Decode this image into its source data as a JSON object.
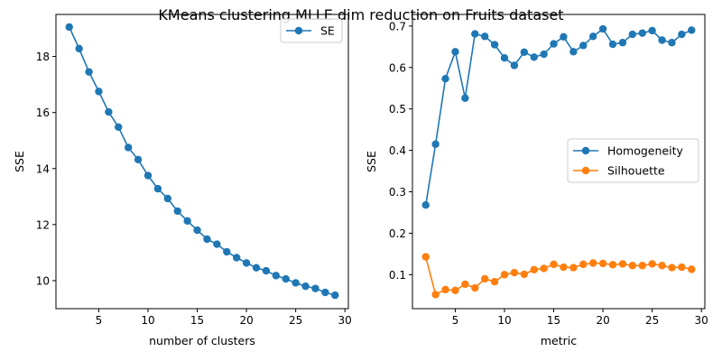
{
  "figure": {
    "title": "KMeans clustering MLLE dim reduction on Fruits dataset"
  },
  "chart_data": [
    {
      "type": "line",
      "xlabel": "number of clusters",
      "ylabel": "SSE",
      "xlim": [
        0.65,
        30.35
      ],
      "ylim": [
        9.0,
        19.5
      ],
      "xticks": [
        5,
        10,
        15,
        20,
        25,
        30
      ],
      "yticks": [
        10,
        12,
        14,
        16,
        18
      ],
      "ytick_labels": [
        "10",
        "12",
        "14",
        "16",
        "18"
      ],
      "legend_position": "upper right",
      "x": [
        2,
        3,
        4,
        5,
        6,
        7,
        8,
        9,
        10,
        11,
        12,
        13,
        14,
        15,
        16,
        17,
        18,
        19,
        20,
        21,
        22,
        23,
        24,
        25,
        26,
        27,
        28,
        29
      ],
      "series": [
        {
          "name": "SE",
          "color": "#1f77b4",
          "values": [
            19.05,
            18.28,
            17.45,
            16.75,
            16.02,
            15.48,
            14.75,
            14.32,
            13.75,
            13.28,
            12.93,
            12.48,
            12.13,
            11.8,
            11.48,
            11.3,
            11.03,
            10.82,
            10.63,
            10.46,
            10.35,
            10.18,
            10.06,
            9.92,
            9.8,
            9.72,
            9.58,
            9.48
          ]
        }
      ]
    },
    {
      "type": "line",
      "xlabel": "metric",
      "ylabel": "SSE",
      "xlim": [
        0.65,
        30.35
      ],
      "ylim": [
        0.018,
        0.728
      ],
      "xticks": [
        5,
        10,
        15,
        20,
        25,
        30
      ],
      "yticks": [
        0.1,
        0.2,
        0.3,
        0.4,
        0.5,
        0.6,
        0.7
      ],
      "ytick_labels": [
        "0.1",
        "0.2",
        "0.3",
        "0.4",
        "0.5",
        "0.6",
        "0.7"
      ],
      "legend_position": "center right",
      "x": [
        2,
        3,
        4,
        5,
        6,
        7,
        8,
        9,
        10,
        11,
        12,
        13,
        14,
        15,
        16,
        17,
        18,
        19,
        20,
        21,
        22,
        23,
        24,
        25,
        26,
        27,
        28,
        29
      ],
      "series": [
        {
          "name": "Homogeneity",
          "color": "#1f77b4",
          "values": [
            0.268,
            0.415,
            0.573,
            0.638,
            0.526,
            0.681,
            0.675,
            0.655,
            0.623,
            0.605,
            0.637,
            0.625,
            0.632,
            0.657,
            0.674,
            0.638,
            0.653,
            0.675,
            0.693,
            0.656,
            0.66,
            0.68,
            0.683,
            0.689,
            0.666,
            0.66,
            0.68,
            0.69
          ]
        },
        {
          "name": "Silhouette",
          "color": "#ff7f0e",
          "values": [
            0.143,
            0.052,
            0.064,
            0.062,
            0.077,
            0.068,
            0.09,
            0.083,
            0.1,
            0.105,
            0.101,
            0.112,
            0.115,
            0.125,
            0.118,
            0.117,
            0.125,
            0.128,
            0.127,
            0.124,
            0.126,
            0.122,
            0.122,
            0.126,
            0.122,
            0.117,
            0.118,
            0.113
          ]
        }
      ]
    }
  ]
}
